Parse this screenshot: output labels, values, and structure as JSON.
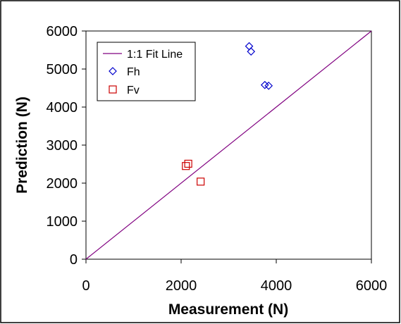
{
  "chart_data": {
    "type": "scatter",
    "xlabel": "Measurement (N)",
    "ylabel": "Prediction (N)",
    "xlim": [
      0,
      6000
    ],
    "ylim": [
      0,
      6000
    ],
    "x_ticks": [
      "0",
      "2000",
      "4000",
      "6000"
    ],
    "y_ticks": [
      "0",
      "1000",
      "2000",
      "3000",
      "4000",
      "5000",
      "6000"
    ],
    "grid": false,
    "legend_position": "top-left",
    "series": [
      {
        "name": "1:1 Fit Line",
        "kind": "line",
        "color": "#800080",
        "points": [
          [
            0,
            0
          ],
          [
            6000,
            6000
          ]
        ]
      },
      {
        "name": "Fh",
        "kind": "marker",
        "marker": "diamond",
        "color": "#0000cc",
        "points": [
          [
            3430,
            5600
          ],
          [
            3470,
            5460
          ],
          [
            3760,
            4580
          ],
          [
            3840,
            4560
          ]
        ]
      },
      {
        "name": "Fv",
        "kind": "marker",
        "marker": "square",
        "color": "#cc0000",
        "points": [
          [
            2100,
            2450
          ],
          [
            2150,
            2510
          ],
          [
            2410,
            2040
          ]
        ]
      }
    ]
  }
}
